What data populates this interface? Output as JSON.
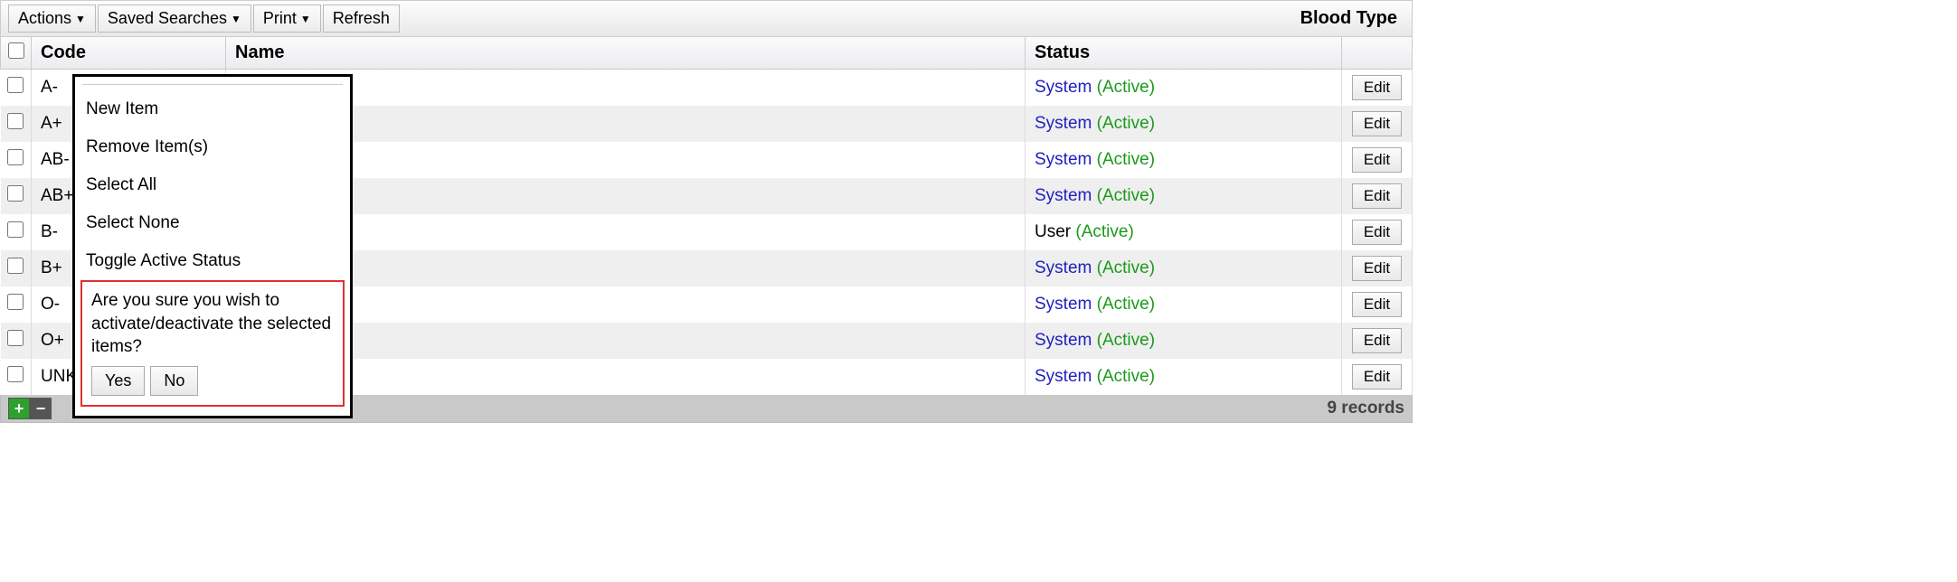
{
  "toolbar": {
    "actions_label": "Actions",
    "saved_searches_label": "Saved Searches",
    "print_label": "Print",
    "refresh_label": "Refresh",
    "title": "Blood Type"
  },
  "columns": {
    "code": "Code",
    "name": "Name",
    "status": "Status"
  },
  "rows": [
    {
      "code": "A-",
      "name": "",
      "status_owner": "System",
      "status_active": "(Active)",
      "owner_type": "system",
      "edit": "Edit"
    },
    {
      "code": "A+",
      "name": "",
      "status_owner": "System",
      "status_active": "(Active)",
      "owner_type": "system",
      "edit": "Edit"
    },
    {
      "code": "AB-",
      "name": "",
      "status_owner": "System",
      "status_active": "(Active)",
      "owner_type": "system",
      "edit": "Edit"
    },
    {
      "code": "AB+",
      "name": "",
      "status_owner": "System",
      "status_active": "(Active)",
      "owner_type": "system",
      "edit": "Edit"
    },
    {
      "code": "B-",
      "name": "",
      "status_owner": "User",
      "status_active": "(Active)",
      "owner_type": "user",
      "edit": "Edit"
    },
    {
      "code": "B+",
      "name": "",
      "status_owner": "System",
      "status_active": "(Active)",
      "owner_type": "system",
      "edit": "Edit"
    },
    {
      "code": "O-",
      "name": "",
      "status_owner": "System",
      "status_active": "(Active)",
      "owner_type": "system",
      "edit": "Edit"
    },
    {
      "code": "O+",
      "name": "",
      "status_owner": "System",
      "status_active": "(Active)",
      "owner_type": "system",
      "edit": "Edit"
    },
    {
      "code": "UNK",
      "name": "",
      "status_owner": "System",
      "status_active": "(Active)",
      "owner_type": "system",
      "edit": "Edit"
    }
  ],
  "footer": {
    "record_count": "9 records"
  },
  "popup": {
    "items": [
      "New Item",
      "Remove Item(s)",
      "Select All",
      "Select None",
      "Toggle Active Status"
    ],
    "confirm_text": "Are you sure you wish to activate/deactivate the selected items?",
    "yes": "Yes",
    "no": "No"
  },
  "colors": {
    "system": "#2020c0",
    "user": "#000000",
    "active": "#1a9a1a",
    "confirm_border": "#e03030"
  }
}
